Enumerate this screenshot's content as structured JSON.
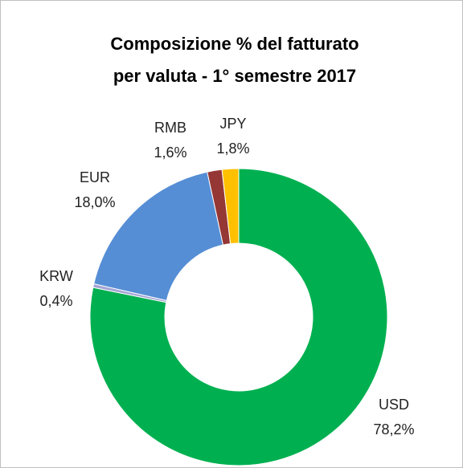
{
  "chart_data": {
    "type": "donut",
    "title": [
      "Composizione % del fatturato",
      "per valuta - 1° semestre 2017"
    ],
    "categories": [
      "USD",
      "KRW",
      "EUR",
      "RMB",
      "JPY"
    ],
    "values": [
      78.2,
      0.4,
      18.0,
      1.6,
      1.8
    ],
    "value_labels": [
      "78,2%",
      "0,4%",
      "18,0%",
      "1,6%",
      "1,8%"
    ],
    "colors": [
      "#00b050",
      "#a5a5d6",
      "#558ed5",
      "#953735",
      "#ffc000"
    ]
  }
}
